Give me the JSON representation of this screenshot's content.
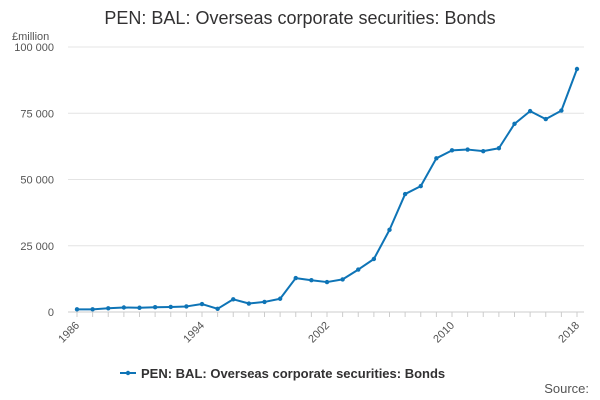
{
  "chart_data": {
    "type": "line",
    "title": "PEN: BAL: Overseas corporate securities: Bonds",
    "unit_label": "£million",
    "ylim": [
      0,
      100000
    ],
    "y_ticks": [
      0,
      25000,
      50000,
      75000,
      100000
    ],
    "y_tick_labels": [
      "0",
      "25 000",
      "50 000",
      "75 000",
      "100 000"
    ],
    "x_range": [
      1986,
      2018
    ],
    "x_tick_labels": [
      "1986",
      "1994",
      "2002",
      "2010",
      "2018"
    ],
    "x": [
      1986,
      1987,
      1988,
      1989,
      1990,
      1991,
      1992,
      1993,
      1994,
      1995,
      1996,
      1997,
      1998,
      1999,
      2000,
      2001,
      2002,
      2003,
      2004,
      2005,
      2006,
      2007,
      2008,
      2009,
      2010,
      2011,
      2012,
      2013,
      2014,
      2015,
      2016,
      2017,
      2018
    ],
    "series": [
      {
        "name": "PEN: BAL: Overseas corporate securities: Bonds",
        "color": "#0e74b6",
        "values": [
          1000,
          1000,
          1400,
          1700,
          1600,
          1800,
          1900,
          2100,
          3000,
          1200,
          4800,
          3200,
          3800,
          5000,
          12800,
          12000,
          11300,
          12300,
          16000,
          20000,
          31000,
          44500,
          47500,
          58000,
          61000,
          61300,
          60700,
          61800,
          71000,
          75800,
          72800,
          76000,
          91700
        ]
      }
    ],
    "grid": "horizontal",
    "legend_position": "bottom"
  },
  "source_label": "Source:"
}
